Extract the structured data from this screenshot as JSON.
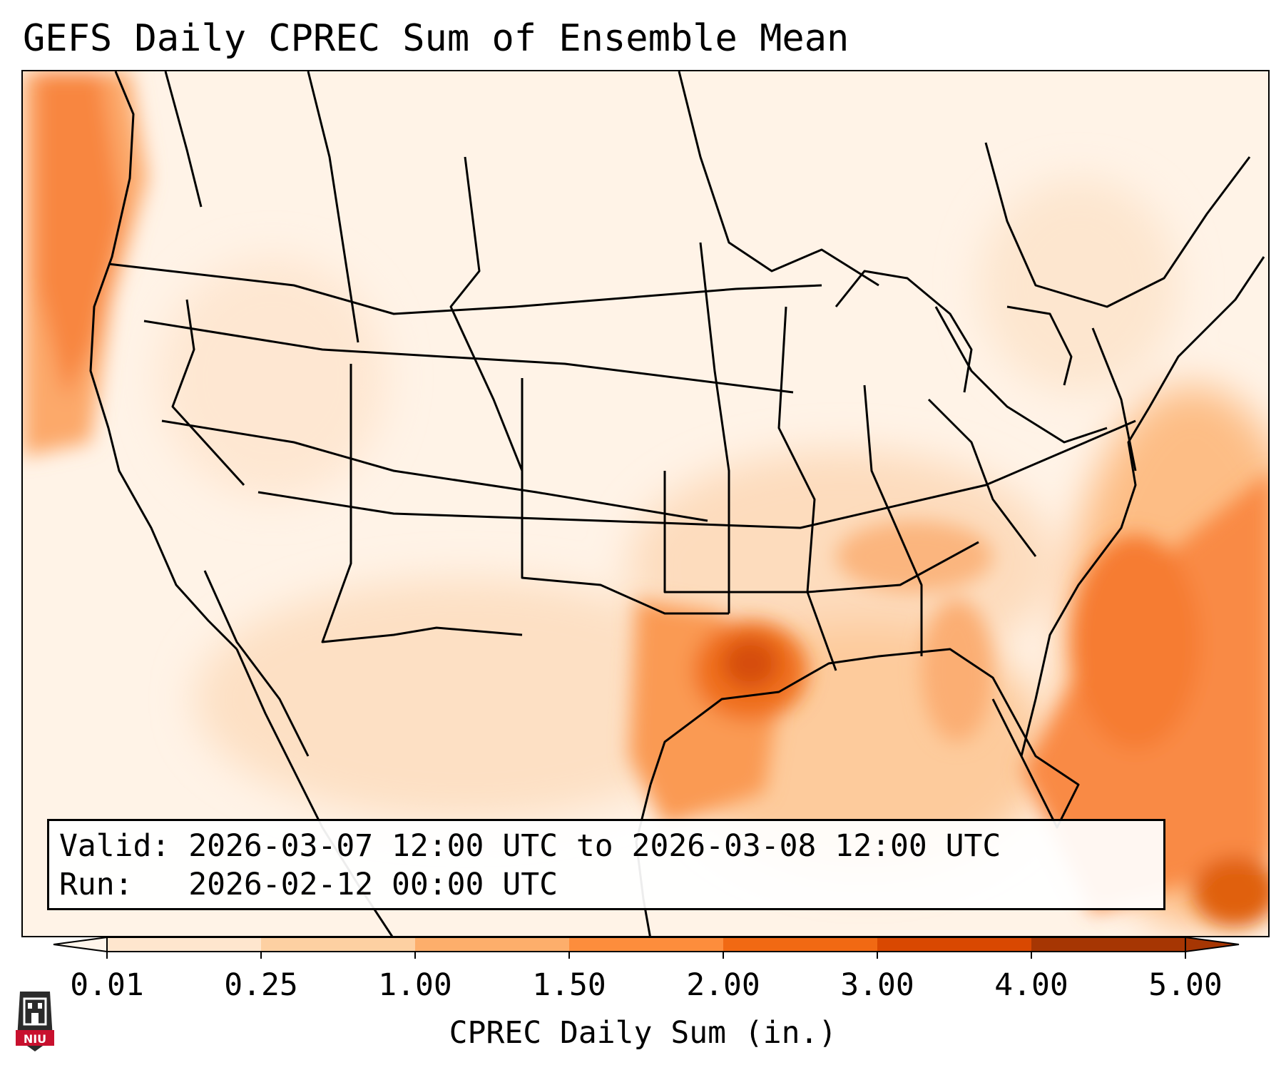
{
  "title": "GEFS Daily CPREC Sum of Ensemble Mean",
  "info": {
    "valid_label": "Valid:",
    "valid_value": "2026-03-07 12:00 UTC to 2026-03-08 12:00 UTC",
    "run_label": "Run:",
    "run_value": "2026-02-12 00:00 UTC"
  },
  "colorbar": {
    "label": "CPREC Daily Sum (in.)",
    "ticks": [
      "0.01",
      "0.25",
      "1.00",
      "1.50",
      "2.00",
      "3.00",
      "4.00",
      "5.00"
    ],
    "colors": [
      "#fff5eb",
      "#fee6ce",
      "#fdd0a2",
      "#fdae6b",
      "#fd8d3c",
      "#f16913",
      "#d94801",
      "#a63603"
    ],
    "extend": "both"
  },
  "logo": {
    "text": "NIU",
    "color": "#c8102e"
  }
}
